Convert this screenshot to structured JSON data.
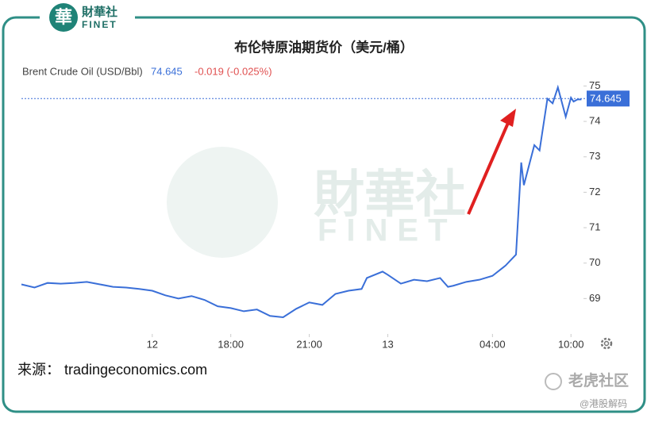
{
  "header": {
    "logo_cn": "財華社",
    "logo_en": "FINET",
    "logo_char": "華"
  },
  "chart_data": {
    "type": "line",
    "title": "布伦特原油期货价（美元/桶）",
    "series": [
      {
        "name": "Brent Crude Oil (USD/Bbl)",
        "color": "#3a6fd8",
        "x": [
          -5,
          -4.5,
          -4,
          -3.5,
          -3,
          -2.5,
          -2,
          -1.5,
          -1,
          -0.5,
          0,
          0.5,
          1,
          1.5,
          2,
          2.5,
          3,
          3.5,
          4,
          4.5,
          5,
          5.5,
          6,
          6.5,
          7,
          7.5,
          8,
          8.2,
          8.8,
          9,
          9.5,
          10,
          10.5,
          11,
          11.3,
          11.5,
          12,
          12.5,
          13,
          13.5,
          13.9,
          14.1,
          14.2,
          14.6,
          14.8,
          15.1,
          15.3,
          15.5,
          15.8,
          16,
          16.1,
          16.25,
          16.4
        ],
        "values": [
          69.4,
          69.31,
          69.44,
          69.42,
          69.44,
          69.47,
          69.4,
          69.33,
          69.31,
          69.27,
          69.22,
          69.09,
          69.0,
          69.07,
          68.96,
          68.78,
          68.73,
          68.64,
          68.69,
          68.51,
          68.47,
          68.71,
          68.89,
          68.82,
          69.13,
          69.22,
          69.27,
          69.58,
          69.76,
          69.67,
          69.42,
          69.53,
          69.49,
          69.58,
          69.33,
          69.36,
          69.47,
          69.53,
          69.64,
          69.93,
          70.24,
          72.84,
          72.2,
          73.33,
          73.18,
          74.64,
          74.51,
          74.96,
          74.13,
          74.67,
          74.56,
          74.62,
          74.62
        ]
      }
    ],
    "current_value": 74.645,
    "change": "-0.019 (-0.025%)",
    "xlim": [
      -5,
      16.6
    ],
    "xticks": [
      {
        "value": 0,
        "label": "12"
      },
      {
        "value": 3,
        "label": "18:00"
      },
      {
        "value": 6,
        "label": "21:00"
      },
      {
        "value": 9,
        "label": "13"
      },
      {
        "value": 13,
        "label": "04:00"
      },
      {
        "value": 16,
        "label": "10:00"
      }
    ],
    "ylim": [
      68.0,
      75.3
    ],
    "yticks": [
      69,
      70,
      71,
      72,
      73,
      74,
      75
    ],
    "source": "来源： tradingeconomics.com",
    "watermark_cn": "財華社",
    "watermark_en": "FINET"
  },
  "footer": {
    "brand": "老虎社区",
    "handle": "@港股解码"
  }
}
